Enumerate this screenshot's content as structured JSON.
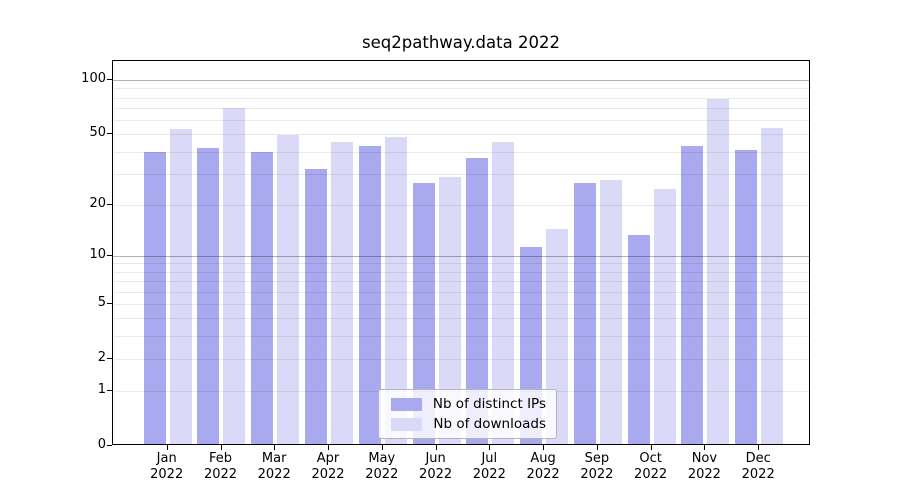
{
  "title": "seq2pathway.data 2022",
  "chart_data": {
    "type": "bar",
    "categories": [
      "Jan 2022",
      "Feb 2022",
      "Mar 2022",
      "Apr 2022",
      "May 2022",
      "Jun 2022",
      "Jul 2022",
      "Aug 2022",
      "Sep 2022",
      "Oct 2022",
      "Nov 2022",
      "Dec 2022"
    ],
    "series": [
      {
        "name": "Nb of distinct IPs",
        "color": "#a9a9f0",
        "values": [
          39,
          41,
          39,
          31,
          42,
          26,
          36,
          11,
          26,
          13,
          42,
          40
        ]
      },
      {
        "name": "Nb of downloads",
        "color": "#dadaf8",
        "values": [
          52,
          68,
          48,
          44,
          47,
          28,
          44,
          14,
          27,
          24,
          77,
          53
        ]
      }
    ],
    "yscale": "log1p",
    "ylim": [
      0,
      127.4
    ],
    "y_tick_values": [
      0,
      1,
      2,
      5,
      10,
      20,
      50,
      100
    ],
    "y_major_gridlines": [
      10,
      100
    ],
    "y_minor_gridlines": [
      1,
      2,
      3,
      4,
      5,
      6,
      7,
      8,
      9,
      20,
      30,
      40,
      50,
      60,
      70,
      80,
      90
    ],
    "xlabel": "",
    "ylabel": "",
    "grid": true,
    "legend_position": "bottom-center"
  },
  "colors": {
    "bar_distinct_ips": "#a9a9f0",
    "bar_downloads": "#dadaf8",
    "grid_major": "#b0b0b0",
    "grid_minor": "#e8e8e8",
    "axis": "#000000",
    "background": "#ffffff"
  }
}
